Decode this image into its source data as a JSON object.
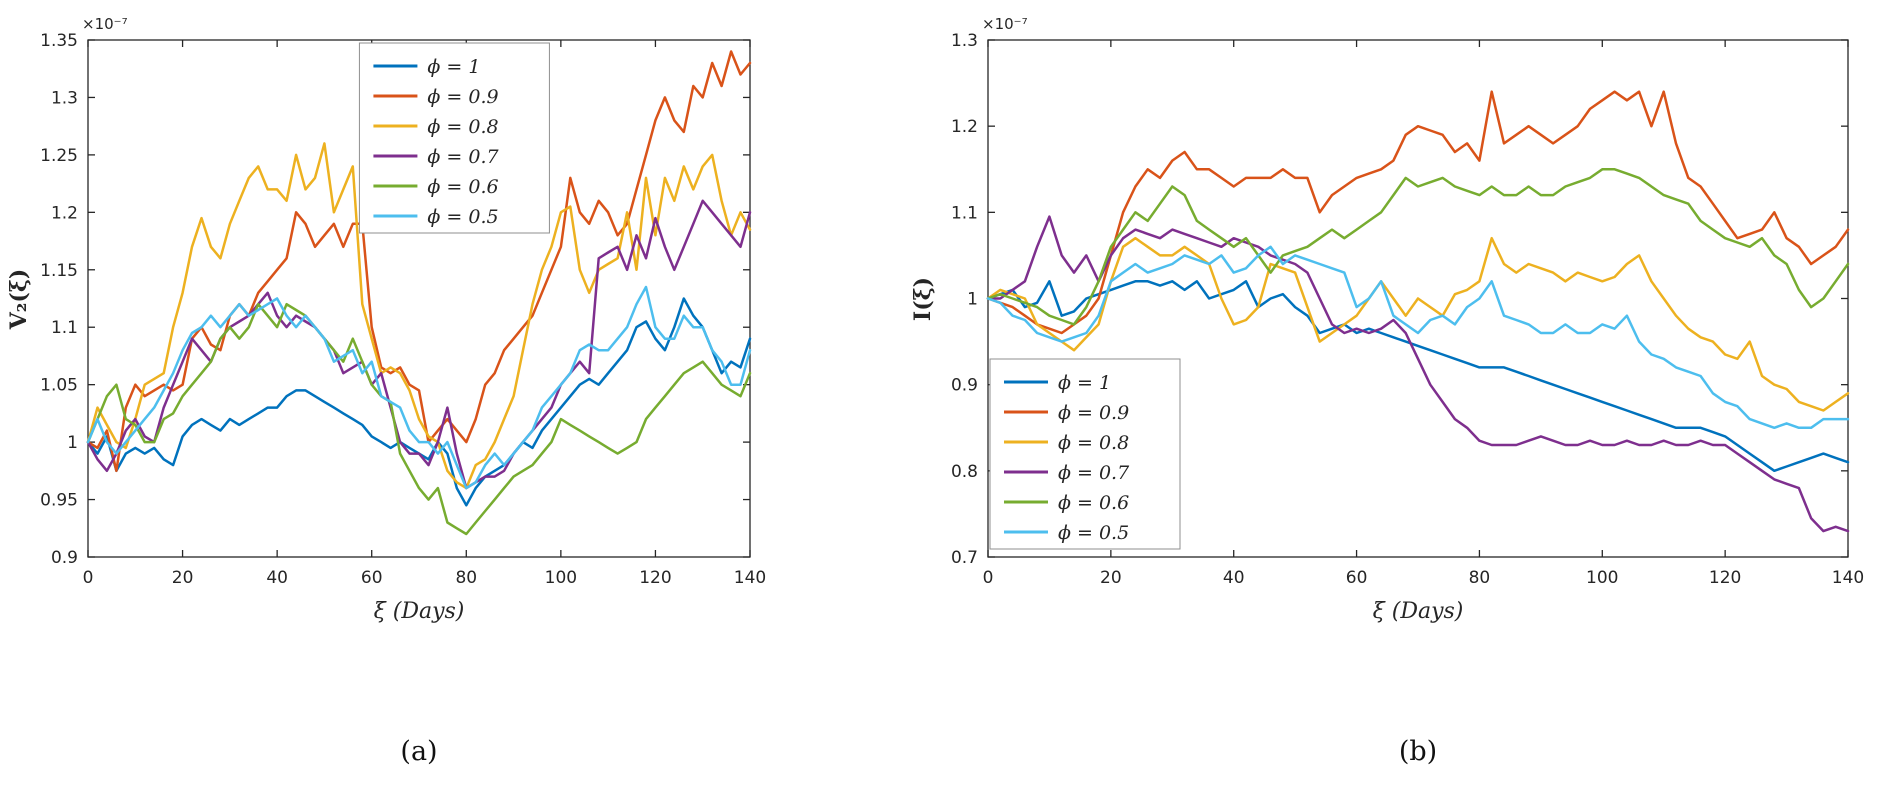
{
  "figure": {
    "captions": [
      "(a)",
      "(b)"
    ],
    "background": "#ffffff",
    "axis_color": "#262626",
    "legend_border_color": "#8f8f8f"
  },
  "chart_data": [
    {
      "type": "line",
      "title": "",
      "xlabel": "ξ (Days)",
      "ylabel": "V₂(ξ)",
      "y_offset_label": "×10⁻⁷",
      "y_unit_scale": "1e-7",
      "xlim": [
        0,
        140
      ],
      "ylim": [
        0.9,
        1.35
      ],
      "xticks": [
        0,
        20,
        40,
        60,
        80,
        100,
        120,
        140
      ],
      "yticks": [
        0.9,
        0.95,
        1,
        1.05,
        1.1,
        1.15,
        1.2,
        1.25,
        1.3,
        1.35
      ],
      "ytick_labels": [
        "0.9",
        "0.95",
        "1",
        "1.05",
        "1.1",
        "1.15",
        "1.2",
        "1.25",
        "1.3",
        "1.35"
      ],
      "grid": false,
      "legend_position": "north-inside",
      "x_start": 0,
      "x_step": 2,
      "series": [
        {
          "name": "ϕ = 1",
          "color": "#0072BD",
          "values": [
            1.0,
            0.99,
            1.005,
            0.975,
            0.99,
            0.995,
            0.99,
            0.995,
            0.985,
            0.98,
            1.005,
            1.015,
            1.02,
            1.015,
            1.01,
            1.02,
            1.015,
            1.02,
            1.025,
            1.03,
            1.03,
            1.04,
            1.045,
            1.045,
            1.04,
            1.035,
            1.03,
            1.025,
            1.02,
            1.015,
            1.005,
            1.0,
            0.995,
            1.0,
            0.995,
            0.99,
            0.985,
            1.0,
            0.99,
            0.96,
            0.945,
            0.96,
            0.97,
            0.975,
            0.98,
            0.99,
            1.0,
            0.995,
            1.01,
            1.02,
            1.03,
            1.04,
            1.05,
            1.055,
            1.05,
            1.06,
            1.07,
            1.08,
            1.1,
            1.105,
            1.09,
            1.08,
            1.1,
            1.125,
            1.11,
            1.1,
            1.08,
            1.06,
            1.07,
            1.065,
            1.09
          ]
        },
        {
          "name": "ϕ = 0.9",
          "color": "#D95319",
          "values": [
            1.0,
            0.995,
            1.01,
            0.975,
            1.03,
            1.05,
            1.04,
            1.045,
            1.05,
            1.045,
            1.05,
            1.09,
            1.1,
            1.085,
            1.08,
            1.11,
            1.12,
            1.11,
            1.13,
            1.14,
            1.15,
            1.16,
            1.2,
            1.19,
            1.17,
            1.18,
            1.19,
            1.17,
            1.19,
            1.19,
            1.1,
            1.065,
            1.06,
            1.065,
            1.05,
            1.045,
            1.0,
            1.01,
            1.02,
            1.01,
            1.0,
            1.02,
            1.05,
            1.06,
            1.08,
            1.09,
            1.1,
            1.11,
            1.13,
            1.15,
            1.17,
            1.23,
            1.2,
            1.19,
            1.21,
            1.2,
            1.18,
            1.19,
            1.22,
            1.25,
            1.28,
            1.3,
            1.28,
            1.27,
            1.31,
            1.3,
            1.33,
            1.31,
            1.34,
            1.32,
            1.33
          ]
        },
        {
          "name": "ϕ = 0.8",
          "color": "#EDB120",
          "values": [
            1.0,
            1.03,
            1.015,
            1.0,
            0.995,
            1.02,
            1.05,
            1.055,
            1.06,
            1.1,
            1.13,
            1.17,
            1.195,
            1.17,
            1.16,
            1.19,
            1.21,
            1.23,
            1.24,
            1.22,
            1.22,
            1.21,
            1.25,
            1.22,
            1.23,
            1.26,
            1.2,
            1.22,
            1.24,
            1.12,
            1.09,
            1.06,
            1.065,
            1.06,
            1.045,
            1.02,
            1.005,
            1.0,
            0.975,
            0.965,
            0.96,
            0.98,
            0.985,
            1.0,
            1.02,
            1.04,
            1.08,
            1.12,
            1.15,
            1.17,
            1.2,
            1.205,
            1.15,
            1.13,
            1.15,
            1.155,
            1.16,
            1.2,
            1.15,
            1.23,
            1.18,
            1.23,
            1.21,
            1.24,
            1.22,
            1.24,
            1.25,
            1.21,
            1.18,
            1.2,
            1.185
          ]
        },
        {
          "name": "ϕ = 0.7",
          "color": "#7E2F8E",
          "values": [
            1.0,
            0.985,
            0.975,
            0.99,
            1.01,
            1.02,
            1.005,
            1.0,
            1.03,
            1.05,
            1.07,
            1.09,
            1.08,
            1.07,
            1.09,
            1.1,
            1.105,
            1.11,
            1.12,
            1.13,
            1.11,
            1.1,
            1.11,
            1.105,
            1.1,
            1.09,
            1.08,
            1.06,
            1.065,
            1.07,
            1.05,
            1.06,
            1.03,
            1.0,
            0.99,
            0.99,
            0.98,
            1.0,
            1.03,
            0.99,
            0.96,
            0.965,
            0.97,
            0.97,
            0.975,
            0.99,
            1.0,
            1.01,
            1.02,
            1.03,
            1.05,
            1.06,
            1.07,
            1.06,
            1.16,
            1.165,
            1.17,
            1.15,
            1.18,
            1.16,
            1.195,
            1.17,
            1.15,
            1.17,
            1.19,
            1.21,
            1.2,
            1.19,
            1.18,
            1.17,
            1.2
          ]
        },
        {
          "name": "ϕ = 0.6",
          "color": "#77AC30",
          "values": [
            1.0,
            1.02,
            1.04,
            1.05,
            1.02,
            1.015,
            1.0,
            1.0,
            1.02,
            1.025,
            1.04,
            1.05,
            1.06,
            1.07,
            1.09,
            1.1,
            1.09,
            1.1,
            1.12,
            1.11,
            1.1,
            1.12,
            1.115,
            1.11,
            1.1,
            1.09,
            1.08,
            1.07,
            1.09,
            1.07,
            1.05,
            1.04,
            1.035,
            0.99,
            0.975,
            0.96,
            0.95,
            0.96,
            0.93,
            0.925,
            0.92,
            0.93,
            0.94,
            0.95,
            0.96,
            0.97,
            0.975,
            0.98,
            0.99,
            1.0,
            1.02,
            1.015,
            1.01,
            1.005,
            1.0,
            0.995,
            0.99,
            0.995,
            1.0,
            1.02,
            1.03,
            1.04,
            1.05,
            1.06,
            1.065,
            1.07,
            1.06,
            1.05,
            1.045,
            1.04,
            1.06
          ]
        },
        {
          "name": "ϕ = 0.5",
          "color": "#4DBEEE",
          "values": [
            1.0,
            1.02,
            1.0,
            0.99,
            1.0,
            1.01,
            1.02,
            1.03,
            1.045,
            1.06,
            1.08,
            1.095,
            1.1,
            1.11,
            1.1,
            1.11,
            1.12,
            1.11,
            1.115,
            1.12,
            1.125,
            1.11,
            1.1,
            1.11,
            1.1,
            1.09,
            1.07,
            1.075,
            1.08,
            1.06,
            1.07,
            1.04,
            1.035,
            1.03,
            1.01,
            1.0,
            1.0,
            0.99,
            1.0,
            0.98,
            0.96,
            0.965,
            0.98,
            0.99,
            0.98,
            0.99,
            1.0,
            1.01,
            1.03,
            1.04,
            1.05,
            1.06,
            1.08,
            1.085,
            1.08,
            1.08,
            1.09,
            1.1,
            1.12,
            1.135,
            1.1,
            1.09,
            1.09,
            1.11,
            1.1,
            1.1,
            1.08,
            1.07,
            1.05,
            1.05,
            1.08
          ]
        }
      ]
    },
    {
      "type": "line",
      "title": "",
      "xlabel": "ξ (Days)",
      "ylabel": "I(ξ)",
      "y_offset_label": "×10⁻⁷",
      "y_unit_scale": "1e-7",
      "xlim": [
        0,
        140
      ],
      "ylim": [
        0.7,
        1.3
      ],
      "xticks": [
        0,
        20,
        40,
        60,
        80,
        100,
        120,
        140
      ],
      "yticks": [
        0.7,
        0.8,
        0.9,
        1,
        1.1,
        1.2,
        1.3
      ],
      "ytick_labels": [
        "0.7",
        "0.8",
        "0.9",
        "1",
        "1.1",
        "1.2",
        "1.3"
      ],
      "grid": false,
      "legend_position": "southwest-inside",
      "x_start": 0,
      "x_step": 2,
      "series": [
        {
          "name": "ϕ = 1",
          "color": "#0072BD",
          "values": [
            1.0,
            1.005,
            1.01,
            0.99,
            0.995,
            1.02,
            0.98,
            0.985,
            1.0,
            1.005,
            1.01,
            1.015,
            1.02,
            1.02,
            1.015,
            1.02,
            1.01,
            1.02,
            1.0,
            1.005,
            1.01,
            1.02,
            0.99,
            1.0,
            1.005,
            0.99,
            0.98,
            0.96,
            0.965,
            0.97,
            0.96,
            0.965,
            0.96,
            0.955,
            0.95,
            0.945,
            0.94,
            0.935,
            0.93,
            0.925,
            0.92,
            0.92,
            0.92,
            0.915,
            0.91,
            0.905,
            0.9,
            0.895,
            0.89,
            0.885,
            0.88,
            0.875,
            0.87,
            0.865,
            0.86,
            0.855,
            0.85,
            0.85,
            0.85,
            0.845,
            0.84,
            0.83,
            0.82,
            0.81,
            0.8,
            0.805,
            0.81,
            0.815,
            0.82,
            0.815,
            0.81
          ]
        },
        {
          "name": "ϕ = 0.9",
          "color": "#D95319",
          "values": [
            1.0,
            0.995,
            0.99,
            0.98,
            0.97,
            0.965,
            0.96,
            0.97,
            0.98,
            1.0,
            1.05,
            1.1,
            1.13,
            1.15,
            1.14,
            1.16,
            1.17,
            1.15,
            1.15,
            1.14,
            1.13,
            1.14,
            1.14,
            1.14,
            1.15,
            1.14,
            1.14,
            1.1,
            1.12,
            1.13,
            1.14,
            1.145,
            1.15,
            1.16,
            1.19,
            1.2,
            1.195,
            1.19,
            1.17,
            1.18,
            1.16,
            1.24,
            1.18,
            1.19,
            1.2,
            1.19,
            1.18,
            1.19,
            1.2,
            1.22,
            1.23,
            1.24,
            1.23,
            1.24,
            1.2,
            1.24,
            1.18,
            1.14,
            1.13,
            1.11,
            1.09,
            1.07,
            1.075,
            1.08,
            1.1,
            1.07,
            1.06,
            1.04,
            1.05,
            1.06,
            1.08
          ]
        },
        {
          "name": "ϕ = 0.8",
          "color": "#EDB120",
          "values": [
            1.0,
            1.01,
            1.005,
            1.0,
            0.97,
            0.96,
            0.95,
            0.94,
            0.955,
            0.97,
            1.02,
            1.06,
            1.07,
            1.06,
            1.05,
            1.05,
            1.06,
            1.05,
            1.04,
            1.0,
            0.97,
            0.975,
            0.99,
            1.04,
            1.035,
            1.03,
            0.99,
            0.95,
            0.96,
            0.97,
            0.98,
            1.0,
            1.02,
            1.0,
            0.98,
            1.0,
            0.99,
            0.98,
            1.005,
            1.01,
            1.02,
            1.07,
            1.04,
            1.03,
            1.04,
            1.035,
            1.03,
            1.02,
            1.03,
            1.025,
            1.02,
            1.025,
            1.04,
            1.05,
            1.02,
            1.0,
            0.98,
            0.965,
            0.955,
            0.95,
            0.935,
            0.93,
            0.95,
            0.91,
            0.9,
            0.895,
            0.88,
            0.875,
            0.87,
            0.88,
            0.89
          ]
        },
        {
          "name": "ϕ = 0.7",
          "color": "#7E2F8E",
          "values": [
            1.0,
            1.0,
            1.01,
            1.02,
            1.06,
            1.095,
            1.05,
            1.03,
            1.05,
            1.02,
            1.05,
            1.07,
            1.08,
            1.075,
            1.07,
            1.08,
            1.075,
            1.07,
            1.065,
            1.06,
            1.07,
            1.065,
            1.06,
            1.05,
            1.045,
            1.04,
            1.03,
            1.0,
            0.97,
            0.96,
            0.965,
            0.96,
            0.965,
            0.975,
            0.96,
            0.93,
            0.9,
            0.88,
            0.86,
            0.85,
            0.835,
            0.83,
            0.83,
            0.83,
            0.835,
            0.84,
            0.835,
            0.83,
            0.83,
            0.835,
            0.83,
            0.83,
            0.835,
            0.83,
            0.83,
            0.835,
            0.83,
            0.83,
            0.835,
            0.83,
            0.83,
            0.82,
            0.81,
            0.8,
            0.79,
            0.785,
            0.78,
            0.745,
            0.73,
            0.735,
            0.73
          ]
        },
        {
          "name": "ϕ = 0.6",
          "color": "#77AC30",
          "values": [
            1.0,
            1.005,
            1.0,
            0.995,
            0.99,
            0.98,
            0.975,
            0.97,
            0.99,
            1.02,
            1.06,
            1.08,
            1.1,
            1.09,
            1.11,
            1.13,
            1.12,
            1.09,
            1.08,
            1.07,
            1.06,
            1.07,
            1.05,
            1.03,
            1.05,
            1.055,
            1.06,
            1.07,
            1.08,
            1.07,
            1.08,
            1.09,
            1.1,
            1.12,
            1.14,
            1.13,
            1.135,
            1.14,
            1.13,
            1.125,
            1.12,
            1.13,
            1.12,
            1.12,
            1.13,
            1.12,
            1.12,
            1.13,
            1.135,
            1.14,
            1.15,
            1.15,
            1.145,
            1.14,
            1.13,
            1.12,
            1.115,
            1.11,
            1.09,
            1.08,
            1.07,
            1.065,
            1.06,
            1.07,
            1.05,
            1.04,
            1.01,
            0.99,
            1.0,
            1.02,
            1.04
          ]
        },
        {
          "name": "ϕ = 0.5",
          "color": "#4DBEEE",
          "values": [
            1.0,
            0.995,
            0.98,
            0.975,
            0.96,
            0.955,
            0.95,
            0.955,
            0.96,
            0.98,
            1.02,
            1.03,
            1.04,
            1.03,
            1.035,
            1.04,
            1.05,
            1.045,
            1.04,
            1.05,
            1.03,
            1.035,
            1.05,
            1.06,
            1.04,
            1.05,
            1.045,
            1.04,
            1.035,
            1.03,
            0.99,
            1.0,
            1.02,
            0.98,
            0.97,
            0.96,
            0.975,
            0.98,
            0.97,
            0.99,
            1.0,
            1.02,
            0.98,
            0.975,
            0.97,
            0.96,
            0.96,
            0.97,
            0.96,
            0.96,
            0.97,
            0.965,
            0.98,
            0.95,
            0.935,
            0.93,
            0.92,
            0.915,
            0.91,
            0.89,
            0.88,
            0.875,
            0.86,
            0.855,
            0.85,
            0.855,
            0.85,
            0.85,
            0.86,
            0.86,
            0.86
          ]
        }
      ]
    }
  ]
}
